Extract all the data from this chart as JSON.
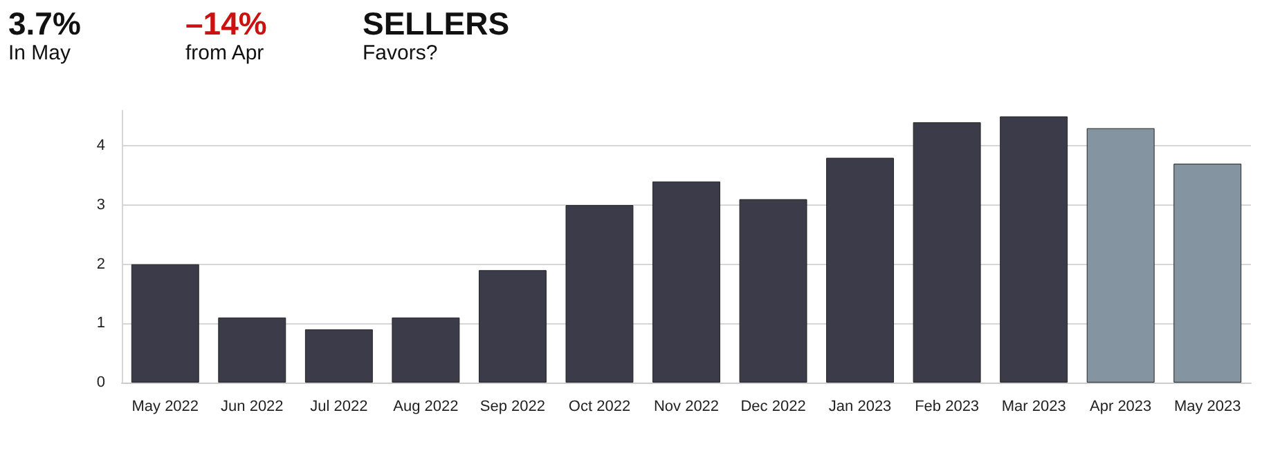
{
  "chart_data": {
    "type": "bar",
    "annotations": [
      "3.7%",
      "In May",
      "–14%",
      "from Apr",
      "SELLERS",
      "Favors?"
    ],
    "categories": [
      "May 2022",
      "Jun 2022",
      "Jul 2022",
      "Aug 2022",
      "Sep 2022",
      "Oct 2022",
      "Nov 2022",
      "Dec 2022",
      "Jan 2023",
      "Feb 2023",
      "Mar 2023",
      "Apr 2023",
      "May 2023"
    ],
    "values": [
      2.0,
      1.1,
      0.9,
      1.1,
      1.9,
      3.0,
      3.4,
      3.1,
      3.8,
      4.4,
      4.5,
      4.3,
      3.7
    ],
    "colors": [
      "#3c3b49",
      "#3c3b49",
      "#3c3b49",
      "#3c3b49",
      "#3c3b49",
      "#3c3b49",
      "#3c3b49",
      "#3c3b49",
      "#3c3b49",
      "#3c3b49",
      "#3c3b49",
      "#8494a1",
      "#8494a1"
    ],
    "ylim": [
      0,
      4.6
    ],
    "yticks": [
      0,
      1,
      2,
      3,
      4
    ],
    "grid": "y"
  }
}
